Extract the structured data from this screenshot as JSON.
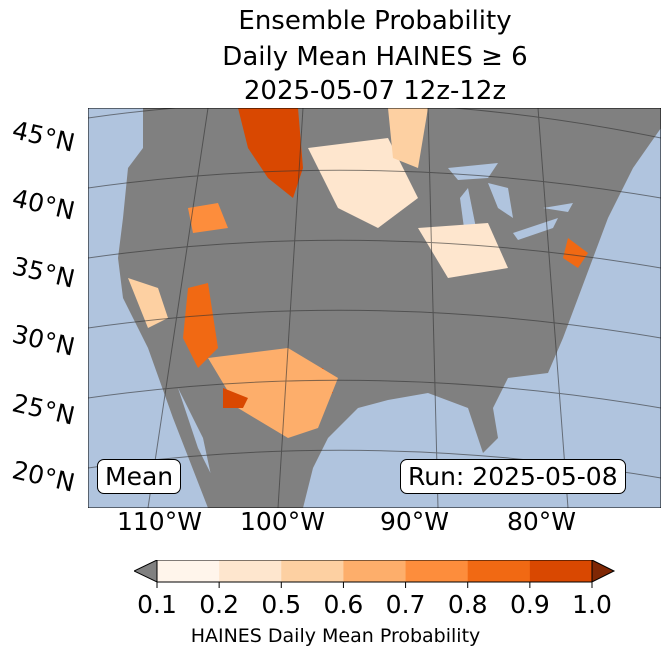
{
  "title": {
    "line1": "Ensemble Probability",
    "line2": "Daily Mean HAINES ≥ 6",
    "line3": "2025-05-07 12z-12z"
  },
  "map": {
    "lat_labels": [
      "45°N",
      "40°N",
      "35°N",
      "30°N",
      "25°N",
      "20°N"
    ],
    "lon_labels": [
      "110°W",
      "100°W",
      "90°W",
      "80°W"
    ],
    "left_box": "Mean",
    "right_box": "Run: 2025-05-08",
    "colors": {
      "ocean": "#b0c4de",
      "land": "#808080"
    }
  },
  "colorbar": {
    "ticks": [
      "0.1",
      "0.2",
      "0.5",
      "0.6",
      "0.7",
      "0.8",
      "0.9",
      "1.0"
    ],
    "colors": [
      "#fff5eb",
      "#fee6ce",
      "#fdd0a2",
      "#fdae6b",
      "#fd8d3c",
      "#f16913",
      "#d94801"
    ],
    "under": "#808080",
    "over": "#7f2704",
    "label": "HAINES Daily Mean Probability"
  }
}
